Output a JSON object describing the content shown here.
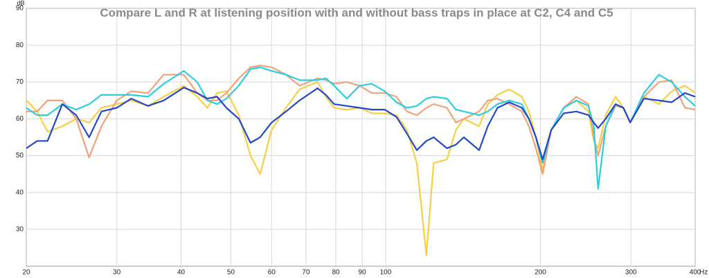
{
  "chart_data": {
    "type": "line",
    "title": "Compare L and R at listening position with and without bass traps in place at C2, C4 and C5",
    "ylabel": "dB",
    "xlabel": "Hz",
    "log_x": true,
    "grid": true,
    "xlim": [
      20,
      400
    ],
    "xticks": [
      20,
      30,
      40,
      50,
      60,
      70,
      80,
      90,
      100,
      200,
      300,
      400
    ],
    "ylim": [
      20,
      90
    ],
    "yticks": [
      30,
      40,
      50,
      60,
      70,
      80,
      90
    ],
    "x": [
      20,
      21,
      22,
      23.5,
      25,
      26.5,
      28,
      30,
      32,
      34.5,
      37,
      40.5,
      43,
      45,
      47,
      49,
      51.8,
      54.6,
      57,
      60,
      64,
      68,
      73.7,
      76.5,
      79.4,
      84,
      89,
      94,
      99.6,
      105,
      110,
      115,
      120,
      124,
      131.6,
      137,
      142,
      152,
      158,
      165,
      174,
      184,
      190,
      196,
      202,
      210,
      222,
      235,
      248,
      254,
      259,
      268,
      280,
      290,
      299,
      318,
      340,
      360,
      382,
      400
    ],
    "series": [
      {
        "color": "#f5cf45",
        "values": [
          65,
          62,
          56.5,
          58,
          60,
          59,
          63,
          64,
          65,
          63.5,
          66,
          69,
          66,
          63,
          67,
          67.5,
          61,
          50,
          45,
          57,
          63,
          68,
          70,
          66,
          63,
          62.5,
          63,
          61.5,
          61.5,
          61,
          57,
          48,
          23,
          48,
          49,
          57,
          60,
          58,
          64,
          66.5,
          68,
          66,
          62,
          55,
          46,
          57,
          63,
          65,
          62,
          54,
          52,
          61,
          66,
          63,
          59,
          66,
          64,
          67.5,
          69,
          67
        ]
      },
      {
        "color": "#f0a27a",
        "values": [
          62,
          62,
          65,
          65,
          60,
          49.5,
          58,
          65,
          67.5,
          67,
          72,
          72,
          67,
          65,
          65,
          67,
          71,
          74,
          74.5,
          74,
          72,
          69,
          71,
          70.5,
          69.5,
          70,
          69,
          67,
          67,
          66,
          62,
          61,
          63,
          64,
          63,
          59,
          60,
          62,
          65,
          65.5,
          64,
          62,
          58,
          52,
          45,
          57,
          63,
          66,
          64,
          55,
          50,
          58,
          63.5,
          63,
          59,
          66,
          70,
          70.5,
          63,
          62.5
        ]
      },
      {
        "color": "#2ccde0",
        "values": [
          63,
          61,
          61,
          64,
          62.5,
          64,
          66.5,
          66.5,
          66.5,
          66,
          69.5,
          73,
          70,
          65,
          64,
          65.5,
          69,
          73.5,
          74,
          73,
          72,
          70.5,
          70.5,
          71,
          69,
          65.5,
          69,
          69.5,
          67.5,
          64.5,
          63,
          63.5,
          65.5,
          66,
          65.5,
          62.5,
          62,
          61,
          62,
          64,
          65,
          64,
          60,
          55,
          48,
          57,
          63,
          65,
          63.5,
          58,
          41,
          58,
          64,
          63,
          59,
          67,
          72,
          70,
          66,
          63.5
        ]
      },
      {
        "color": "#2247c8",
        "values": [
          52,
          54,
          54,
          64,
          61,
          55,
          62,
          63,
          65.5,
          63.5,
          65,
          68.5,
          67,
          65.5,
          66,
          63,
          60,
          53.5,
          55,
          59,
          62,
          65,
          68.3,
          66.5,
          64,
          63.5,
          63,
          62.5,
          62.5,
          60.5,
          56,
          51.5,
          54,
          55,
          52,
          53,
          55,
          51.5,
          58,
          63,
          64.5,
          63,
          60,
          55,
          49,
          57,
          61.5,
          62,
          61,
          59,
          57.5,
          60,
          64,
          63,
          59,
          65.5,
          65,
          64.5,
          67,
          66
        ]
      }
    ]
  }
}
